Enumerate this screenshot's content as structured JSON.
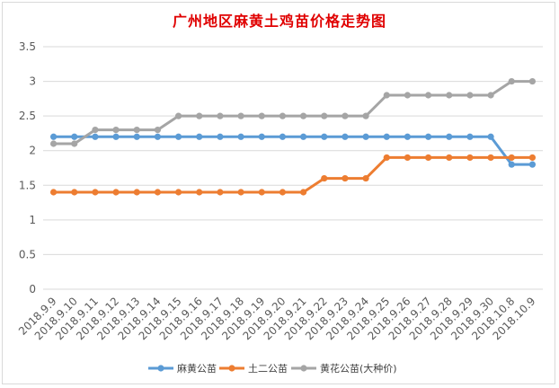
{
  "chart_data": {
    "type": "line",
    "title": "广州地区麻黄土鸡苗价格走势图",
    "categories": [
      "2018.9.9",
      "2018.9.10",
      "2018.9.11",
      "2018.9.12",
      "2018.9.13",
      "2018.9.14",
      "2018.9.15",
      "2018.9.16",
      "2018.9.17",
      "2018.9.18",
      "2018.9.19",
      "2018.9.20",
      "2018.9.21",
      "2018.9.22",
      "2018.9.23",
      "2018.9.24",
      "2018.9.25",
      "2018.9.26",
      "2018.9.27",
      "2018.9.28",
      "2018.9.29",
      "2018.9.30",
      "2018.10.8",
      "2018.10.9"
    ],
    "ylim": [
      0,
      3.5
    ],
    "yticks": [
      "0",
      "0.5",
      "1",
      "1.5",
      "2",
      "2.5",
      "3",
      "3.5"
    ],
    "grid": true,
    "legend_position": "bottom",
    "series": [
      {
        "name": "麻黄公苗",
        "color": "#5b9bd5",
        "values": [
          2.2,
          2.2,
          2.2,
          2.2,
          2.2,
          2.2,
          2.2,
          2.2,
          2.2,
          2.2,
          2.2,
          2.2,
          2.2,
          2.2,
          2.2,
          2.2,
          2.2,
          2.2,
          2.2,
          2.2,
          2.2,
          2.2,
          1.8,
          1.8
        ]
      },
      {
        "name": "土二公苗",
        "color": "#ed7d31",
        "values": [
          1.4,
          1.4,
          1.4,
          1.4,
          1.4,
          1.4,
          1.4,
          1.4,
          1.4,
          1.4,
          1.4,
          1.4,
          1.4,
          1.6,
          1.6,
          1.6,
          1.9,
          1.9,
          1.9,
          1.9,
          1.9,
          1.9,
          1.9,
          1.9
        ]
      },
      {
        "name": "黄花公苗(大种价)",
        "color": "#a5a5a5",
        "values": [
          2.1,
          2.1,
          2.3,
          2.3,
          2.3,
          2.3,
          2.5,
          2.5,
          2.5,
          2.5,
          2.5,
          2.5,
          2.5,
          2.5,
          2.5,
          2.5,
          2.8,
          2.8,
          2.8,
          2.8,
          2.8,
          2.8,
          3.0,
          3.0
        ]
      }
    ]
  }
}
